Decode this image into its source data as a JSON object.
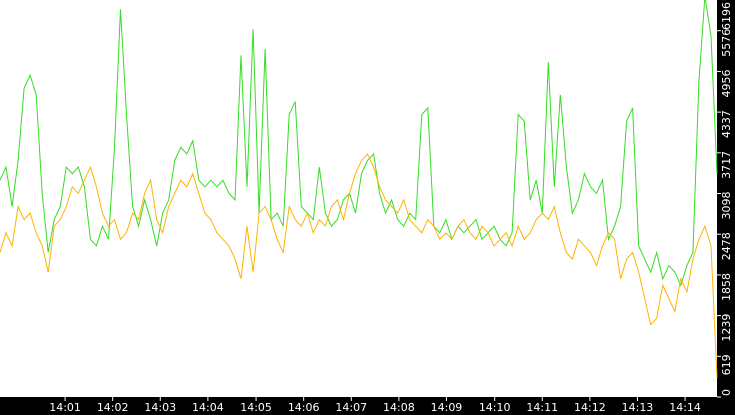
{
  "chart_data": {
    "type": "line",
    "xlim": [
      0,
      119
    ],
    "xticks": [
      {
        "value": 10.8,
        "label": "14:01"
      },
      {
        "value": 18.7,
        "label": "14:02"
      },
      {
        "value": 26.6,
        "label": "14:03"
      },
      {
        "value": 34.5,
        "label": "14:04"
      },
      {
        "value": 42.5,
        "label": "14:05"
      },
      {
        "value": 50.4,
        "label": "14:06"
      },
      {
        "value": 58.3,
        "label": "14:07"
      },
      {
        "value": 66.2,
        "label": "14:08"
      },
      {
        "value": 74.1,
        "label": "14:09"
      },
      {
        "value": 82.1,
        "label": "14:10"
      },
      {
        "value": 90.0,
        "label": "14:11"
      },
      {
        "value": 97.9,
        "label": "14:12"
      },
      {
        "value": 105.8,
        "label": "14:13"
      },
      {
        "value": 113.7,
        "label": "14:14"
      }
    ],
    "ylim": [
      0,
      6196
    ],
    "yticks": [
      0,
      619,
      1239,
      1858,
      2478,
      3098,
      3717,
      4337,
      4956,
      5576,
      6196
    ],
    "series": [
      {
        "color": "#33dd22",
        "values": [
          3300,
          3500,
          2900,
          3600,
          4700,
          4900,
          4600,
          3100,
          2200,
          2700,
          2900,
          3500,
          3400,
          3500,
          3200,
          2400,
          2300,
          2600,
          2400,
          3800,
          5900,
          4300,
          2900,
          2600,
          3000,
          2700,
          2300,
          2800,
          3000,
          3600,
          3800,
          3700,
          3900,
          3300,
          3200,
          3300,
          3200,
          3300,
          3100,
          3000,
          5200,
          3200,
          5600,
          2800,
          5300,
          2700,
          2800,
          2600,
          4300,
          4500,
          2900,
          2800,
          2700,
          3500,
          2800,
          2600,
          2700,
          3000,
          3100,
          2800,
          3400,
          3600,
          3700,
          3100,
          2800,
          3000,
          2700,
          2600,
          2800,
          2700,
          4300,
          4400,
          2600,
          2500,
          2700,
          2400,
          2600,
          2500,
          2600,
          2700,
          2400,
          2500,
          2600,
          2400,
          2300,
          2500,
          4300,
          4200,
          3000,
          3300,
          2800,
          5100,
          3200,
          4600,
          3500,
          2800,
          3000,
          3400,
          3200,
          3100,
          3300,
          2400,
          2600,
          2900,
          4200,
          4400,
          2300,
          2100,
          1900,
          2200,
          1800,
          2000,
          1900,
          1700,
          2000,
          2200,
          4800,
          6100,
          5500,
          3400
        ]
      },
      {
        "color": "#ffb300",
        "values": [
          2200,
          2500,
          2300,
          2900,
          2700,
          2800,
          2500,
          2300,
          1900,
          2600,
          2700,
          2900,
          3200,
          3100,
          3300,
          3500,
          3200,
          2800,
          2600,
          2700,
          2400,
          2500,
          2800,
          2700,
          3100,
          3300,
          2700,
          2500,
          2900,
          3100,
          3300,
          3200,
          3400,
          3100,
          2800,
          2700,
          2500,
          2400,
          2300,
          2100,
          1800,
          2600,
          1900,
          2800,
          2900,
          2700,
          2400,
          2200,
          2900,
          2700,
          2600,
          2800,
          2500,
          2700,
          2600,
          2900,
          3000,
          2700,
          3100,
          3400,
          3600,
          3700,
          3500,
          3200,
          3000,
          2900,
          2800,
          3000,
          2700,
          2600,
          2500,
          2700,
          2600,
          2400,
          2500,
          2400,
          2600,
          2700,
          2500,
          2400,
          2600,
          2500,
          2300,
          2400,
          2500,
          2300,
          2600,
          2400,
          2500,
          2700,
          2800,
          2700,
          2900,
          2500,
          2200,
          2100,
          2400,
          2300,
          2200,
          2000,
          2300,
          2500,
          2400,
          1800,
          2100,
          2200,
          1900,
          1500,
          1100,
          1200,
          1700,
          1500,
          1300,
          1800,
          1600,
          2100,
          2400,
          2600,
          2300,
          300
        ]
      }
    ]
  }
}
